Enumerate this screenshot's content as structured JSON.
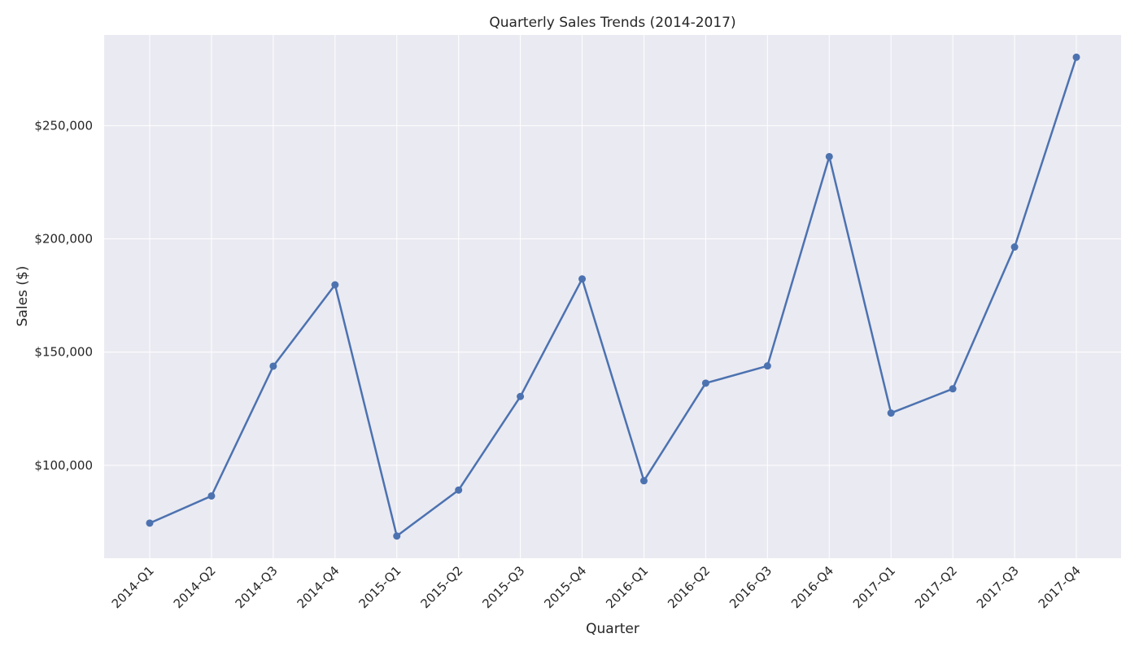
{
  "chart_data": {
    "type": "line",
    "title": "Quarterly Sales Trends (2014-2017)",
    "xlabel": "Quarter",
    "ylabel": "Sales ($)",
    "categories": [
      "2014-Q1",
      "2014-Q2",
      "2014-Q3",
      "2014-Q4",
      "2015-Q1",
      "2015-Q2",
      "2015-Q3",
      "2015-Q4",
      "2016-Q1",
      "2016-Q2",
      "2016-Q3",
      "2016-Q4",
      "2017-Q1",
      "2017-Q2",
      "2017-Q3",
      "2017-Q4"
    ],
    "series": [
      {
        "values": [
          74500,
          86500,
          143800,
          179700,
          68800,
          89100,
          130400,
          182300,
          93200,
          136300,
          143900,
          236300,
          123100,
          133800,
          196400,
          280200
        ],
        "color": "#4c72b0"
      }
    ],
    "ylim": [
      59000,
      290000
    ],
    "yticks": [
      100000,
      150000,
      200000,
      250000
    ],
    "ytick_labels": [
      "$100,000",
      "$150,000",
      "$200,000",
      "$250,000"
    ],
    "grid": true,
    "marker": "circle",
    "background_color": "#eaeaf2",
    "grid_color": "#ffffff",
    "xtick_rotation_deg": 45
  }
}
